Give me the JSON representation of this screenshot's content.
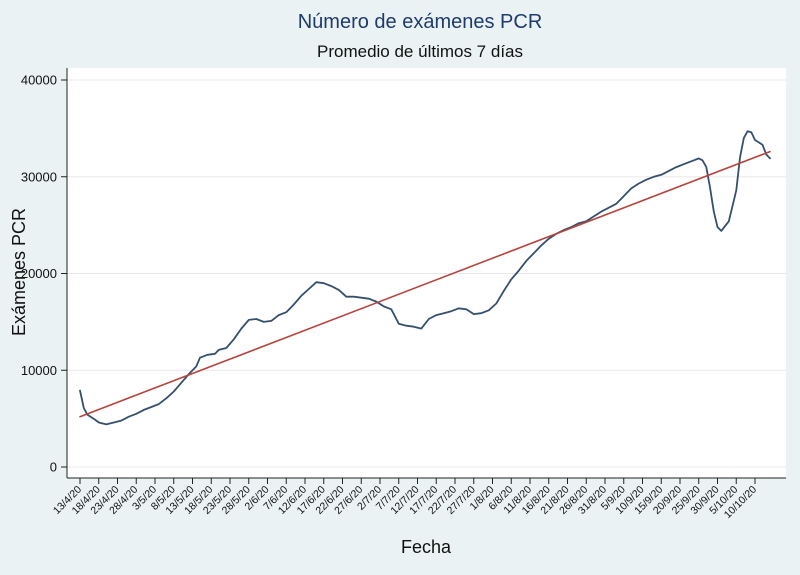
{
  "chart_data": {
    "type": "line",
    "title": "Número de exámenes PCR",
    "subtitle": "Promedio de últimos 7 días",
    "xlabel": "Fecha",
    "ylabel": "Exámenes PCR",
    "ylim": [
      0,
      40000
    ],
    "yticks": [
      0,
      10000,
      20000,
      30000,
      40000
    ],
    "ytick_labels": [
      "0",
      "10000",
      "20000",
      "30000",
      "40000"
    ],
    "xlim": [
      "2020-04-13",
      "2020-10-10"
    ],
    "grid": true,
    "legend": "none",
    "xtick_labels": [
      "13/4/20",
      "18/4/20",
      "23/4/20",
      "28/4/20",
      "3/5/20",
      "8/5/20",
      "13/5/20",
      "18/5/20",
      "23/5/20",
      "28/5/20",
      "2/6/20",
      "7/6/20",
      "12/6/20",
      "17/6/20",
      "22/6/20",
      "27/6/20",
      "2/7/20",
      "7/7/20",
      "12/7/20",
      "17/7/20",
      "22/7/20",
      "27/7/20",
      "1/8/20",
      "6/8/20",
      "11/8/20",
      "16/8/20",
      "21/8/20",
      "26/8/20",
      "31/8/20",
      "5/9/20",
      "10/9/20",
      "15/9/20",
      "20/9/20",
      "25/9/20",
      "30/9/20",
      "5/10/20",
      "10/10/20"
    ],
    "xtick_dates": [
      "2020-04-13",
      "2020-04-18",
      "2020-04-23",
      "2020-04-28",
      "2020-05-03",
      "2020-05-08",
      "2020-05-13",
      "2020-05-18",
      "2020-05-23",
      "2020-05-28",
      "2020-06-02",
      "2020-06-07",
      "2020-06-12",
      "2020-06-17",
      "2020-06-22",
      "2020-06-27",
      "2020-07-02",
      "2020-07-07",
      "2020-07-12",
      "2020-07-17",
      "2020-07-22",
      "2020-07-27",
      "2020-08-01",
      "2020-08-06",
      "2020-08-11",
      "2020-08-16",
      "2020-08-21",
      "2020-08-26",
      "2020-08-31",
      "2020-09-05",
      "2020-09-10",
      "2020-09-15",
      "2020-09-20",
      "2020-09-25",
      "2020-09-30",
      "2020-10-05",
      "2020-10-10"
    ],
    "series": [
      {
        "color": "#34506e",
        "points": [
          [
            "2020-04-13",
            7900
          ],
          [
            "2020-04-14",
            6100
          ],
          [
            "2020-04-15",
            5400
          ],
          [
            "2020-04-17",
            4900
          ],
          [
            "2020-04-18",
            4600
          ],
          [
            "2020-04-20",
            4400
          ],
          [
            "2020-04-22",
            4600
          ],
          [
            "2020-04-24",
            4800
          ],
          [
            "2020-04-26",
            5200
          ],
          [
            "2020-04-28",
            5500
          ],
          [
            "2020-04-30",
            5900
          ],
          [
            "2020-05-02",
            6200
          ],
          [
            "2020-05-04",
            6500
          ],
          [
            "2020-05-06",
            7100
          ],
          [
            "2020-05-08",
            7800
          ],
          [
            "2020-05-10",
            8700
          ],
          [
            "2020-05-12",
            9600
          ],
          [
            "2020-05-14",
            10400
          ],
          [
            "2020-05-15",
            11300
          ],
          [
            "2020-05-17",
            11600
          ],
          [
            "2020-05-19",
            11700
          ],
          [
            "2020-05-20",
            12100
          ],
          [
            "2020-05-22",
            12300
          ],
          [
            "2020-05-24",
            13200
          ],
          [
            "2020-05-26",
            14300
          ],
          [
            "2020-05-28",
            15200
          ],
          [
            "2020-05-30",
            15300
          ],
          [
            "2020-06-01",
            15000
          ],
          [
            "2020-06-03",
            15100
          ],
          [
            "2020-06-05",
            15700
          ],
          [
            "2020-06-07",
            16000
          ],
          [
            "2020-06-09",
            16800
          ],
          [
            "2020-06-11",
            17700
          ],
          [
            "2020-06-13",
            18400
          ],
          [
            "2020-06-15",
            19100
          ],
          [
            "2020-06-17",
            19000
          ],
          [
            "2020-06-19",
            18700
          ],
          [
            "2020-06-21",
            18300
          ],
          [
            "2020-06-23",
            17600
          ],
          [
            "2020-06-25",
            17600
          ],
          [
            "2020-06-27",
            17500
          ],
          [
            "2020-06-29",
            17400
          ],
          [
            "2020-07-01",
            17100
          ],
          [
            "2020-07-03",
            16600
          ],
          [
            "2020-07-05",
            16300
          ],
          [
            "2020-07-07",
            14800
          ],
          [
            "2020-07-09",
            14600
          ],
          [
            "2020-07-11",
            14500
          ],
          [
            "2020-07-13",
            14300
          ],
          [
            "2020-07-15",
            15300
          ],
          [
            "2020-07-17",
            15700
          ],
          [
            "2020-07-19",
            15900
          ],
          [
            "2020-07-21",
            16100
          ],
          [
            "2020-07-23",
            16400
          ],
          [
            "2020-07-25",
            16300
          ],
          [
            "2020-07-27",
            15800
          ],
          [
            "2020-07-29",
            15900
          ],
          [
            "2020-07-31",
            16200
          ],
          [
            "2020-08-02",
            16900
          ],
          [
            "2020-08-04",
            18200
          ],
          [
            "2020-08-06",
            19400
          ],
          [
            "2020-08-08",
            20300
          ],
          [
            "2020-08-10",
            21300
          ],
          [
            "2020-08-12",
            22100
          ],
          [
            "2020-08-14",
            22900
          ],
          [
            "2020-08-16",
            23600
          ],
          [
            "2020-08-18",
            24100
          ],
          [
            "2020-08-20",
            24500
          ],
          [
            "2020-08-22",
            24800
          ],
          [
            "2020-08-24",
            25200
          ],
          [
            "2020-08-26",
            25400
          ],
          [
            "2020-08-28",
            25900
          ],
          [
            "2020-08-30",
            26400
          ],
          [
            "2020-09-01",
            26800
          ],
          [
            "2020-09-03",
            27200
          ],
          [
            "2020-09-05",
            28000
          ],
          [
            "2020-09-07",
            28800
          ],
          [
            "2020-09-09",
            29300
          ],
          [
            "2020-09-11",
            29700
          ],
          [
            "2020-09-13",
            30000
          ],
          [
            "2020-09-15",
            30200
          ],
          [
            "2020-09-17",
            30600
          ],
          [
            "2020-09-19",
            31000
          ],
          [
            "2020-09-21",
            31300
          ],
          [
            "2020-09-23",
            31600
          ],
          [
            "2020-09-25",
            31900
          ],
          [
            "2020-09-26",
            31700
          ],
          [
            "2020-09-27",
            31000
          ],
          [
            "2020-09-28",
            28900
          ],
          [
            "2020-09-29",
            26400
          ],
          [
            "2020-09-30",
            24800
          ],
          [
            "2020-10-01",
            24400
          ],
          [
            "2020-10-03",
            25400
          ],
          [
            "2020-10-05",
            28600
          ],
          [
            "2020-10-06",
            32000
          ],
          [
            "2020-10-07",
            34000
          ],
          [
            "2020-10-08",
            34700
          ],
          [
            "2020-10-09",
            34600
          ],
          [
            "2020-10-10",
            33800
          ],
          [
            "2020-10-12",
            33300
          ],
          [
            "2020-10-13",
            32300
          ],
          [
            "2020-10-14",
            31900
          ]
        ]
      },
      {
        "kind": "trend",
        "color": "#b7433d",
        "points": [
          [
            "2020-04-13",
            5200
          ],
          [
            "2020-10-14",
            32600
          ]
        ]
      }
    ]
  }
}
